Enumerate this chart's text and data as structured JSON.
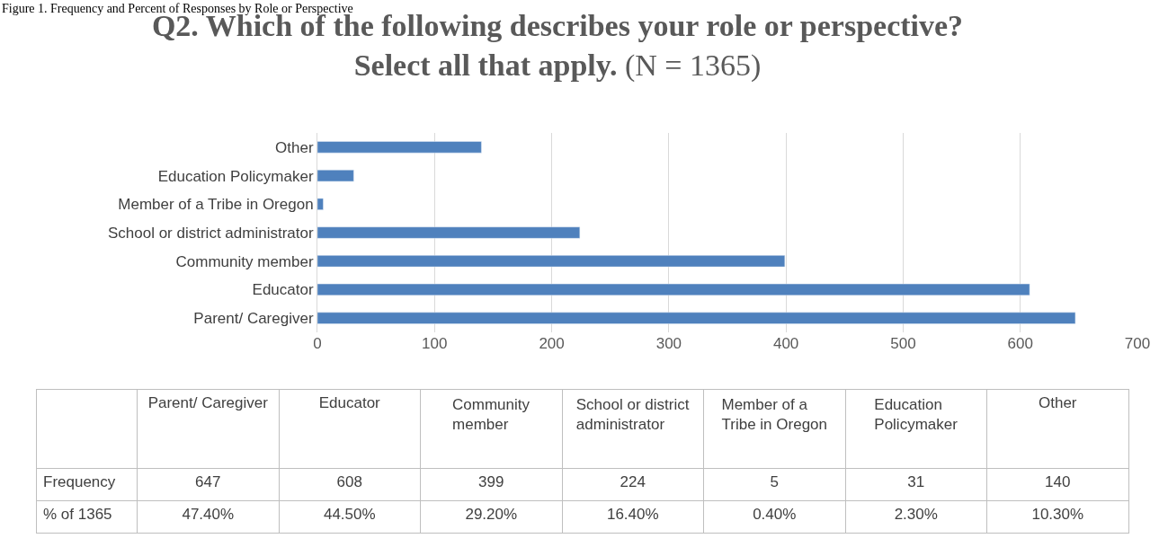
{
  "chart_data": [
    {
      "type": "bar",
      "orientation": "horizontal",
      "title": "Q2. Which of the following describes your role or perspective? Select all that apply.",
      "subtitle": "(N = 1365)",
      "annotations": [
        "Figure 1. Frequency and Percent of Responses by Role or Perspective"
      ],
      "categories": [
        "Other",
        "Education Policymaker",
        "Member of a Tribe in Oregon",
        "School or district administrator",
        "Community member",
        "Educator",
        "Parent/ Caregiver"
      ],
      "values": [
        140,
        31,
        5,
        224,
        399,
        608,
        647
      ],
      "color": "#4f81bd",
      "xlim": [
        0,
        700
      ],
      "xticks": [
        0,
        100,
        200,
        300,
        400,
        500,
        600,
        700
      ],
      "grid": "x",
      "legend": false
    },
    {
      "type": "other",
      "data_labels": true,
      "categories": [
        "Parent/ Caregiver",
        "Educator",
        "Community member",
        "School or district administrator",
        "Member of a Tribe in Oregon",
        "Education Policymaker",
        "Other"
      ],
      "series": [
        {
          "name": "Frequency",
          "values": [
            647,
            608,
            399,
            224,
            5,
            31,
            140
          ]
        },
        {
          "name": "% of 1365",
          "values": [
            47.4,
            44.5,
            29.2,
            16.4,
            0.4,
            2.3,
            10.3
          ],
          "value_labels": [
            "47.40%",
            "44.50%",
            "29.20%",
            "16.40%",
            "0.40%",
            "2.30%",
            "10.30%"
          ]
        }
      ]
    }
  ]
}
